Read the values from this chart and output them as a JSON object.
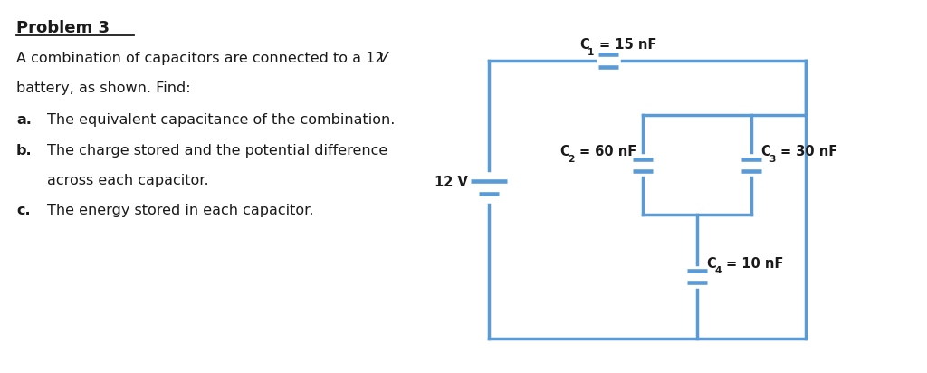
{
  "bg_color": "#ffffff",
  "circuit_color": "#5b9bd5",
  "text_color": "#1a1a1a",
  "line_width": 2.5,
  "font_size_body": 11.5,
  "font_size_label": 10.5,
  "font_size_title": 13,
  "battery_label": "12 V",
  "c1_val": "= 15 nF",
  "c2_val": "= 60 nF",
  "c3_val": "= 30 nF",
  "c4_val": "= 10 nF"
}
